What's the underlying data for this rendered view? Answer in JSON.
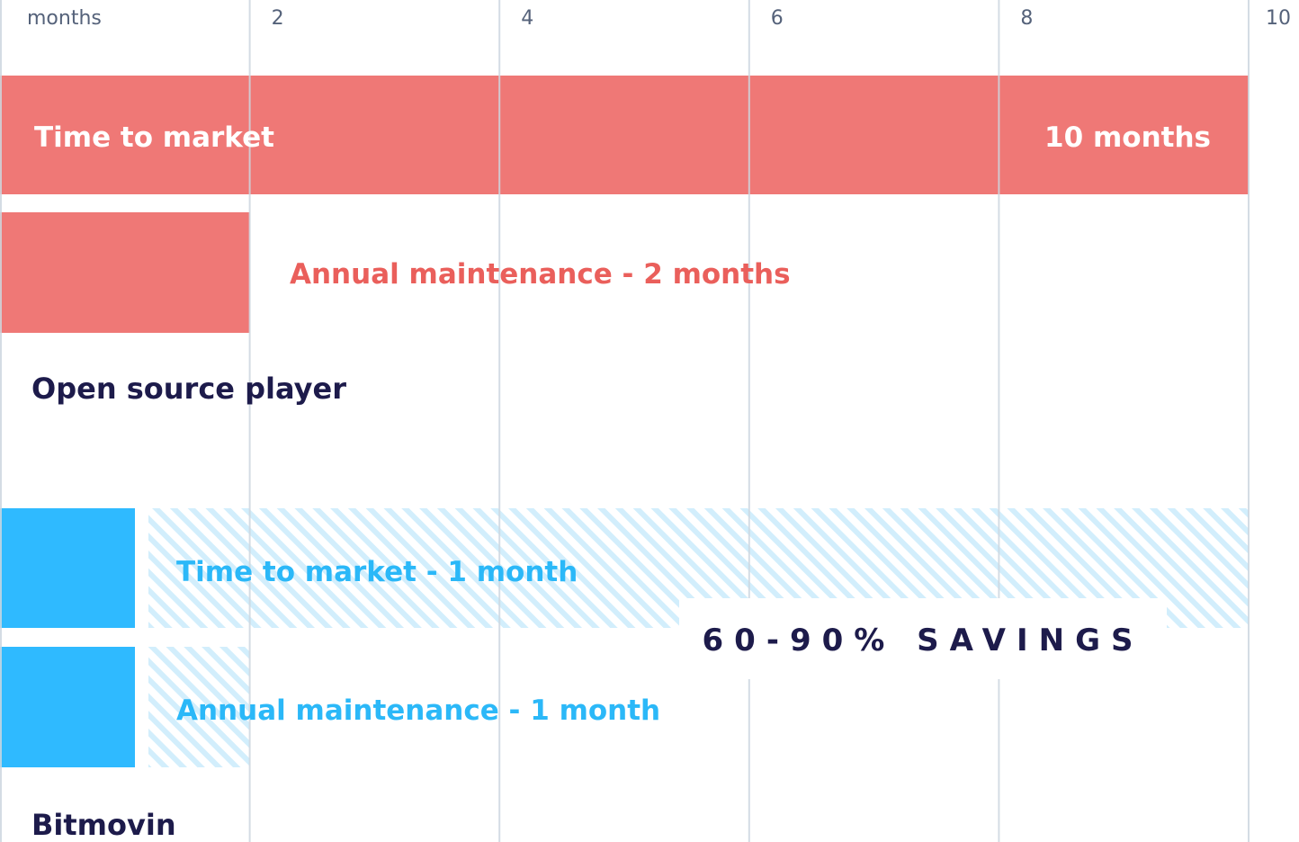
{
  "chart_data": {
    "type": "bar",
    "orientation": "horizontal",
    "x_unit_label": "months",
    "xlim": [
      0,
      10
    ],
    "x_ticks": [
      "2",
      "4",
      "6",
      "8",
      "10"
    ],
    "grid": true,
    "colors": {
      "open_source": "#ef7876",
      "open_source_text": "#ea5f5b",
      "bitmovin": "#2fbaff",
      "bitmovin_text": "#2bb8f8",
      "hatch": "#d2eefc",
      "gridline": "#cdd6df",
      "dark_text": "#1d1b4b"
    },
    "groups": [
      {
        "name": "Open source player",
        "bars": [
          {
            "value": 10,
            "label": "Time to market",
            "value_label": "10 months"
          },
          {
            "value": 2,
            "label": "Annual maintenance - 2 months"
          }
        ]
      },
      {
        "name": "Bitmovin",
        "bars": [
          {
            "value": 1,
            "label": "Time to market - 1 month"
          },
          {
            "value": 1,
            "label": "Annual maintenance - 1 month"
          }
        ]
      }
    ],
    "annotation": "60-90% SAVINGS"
  }
}
